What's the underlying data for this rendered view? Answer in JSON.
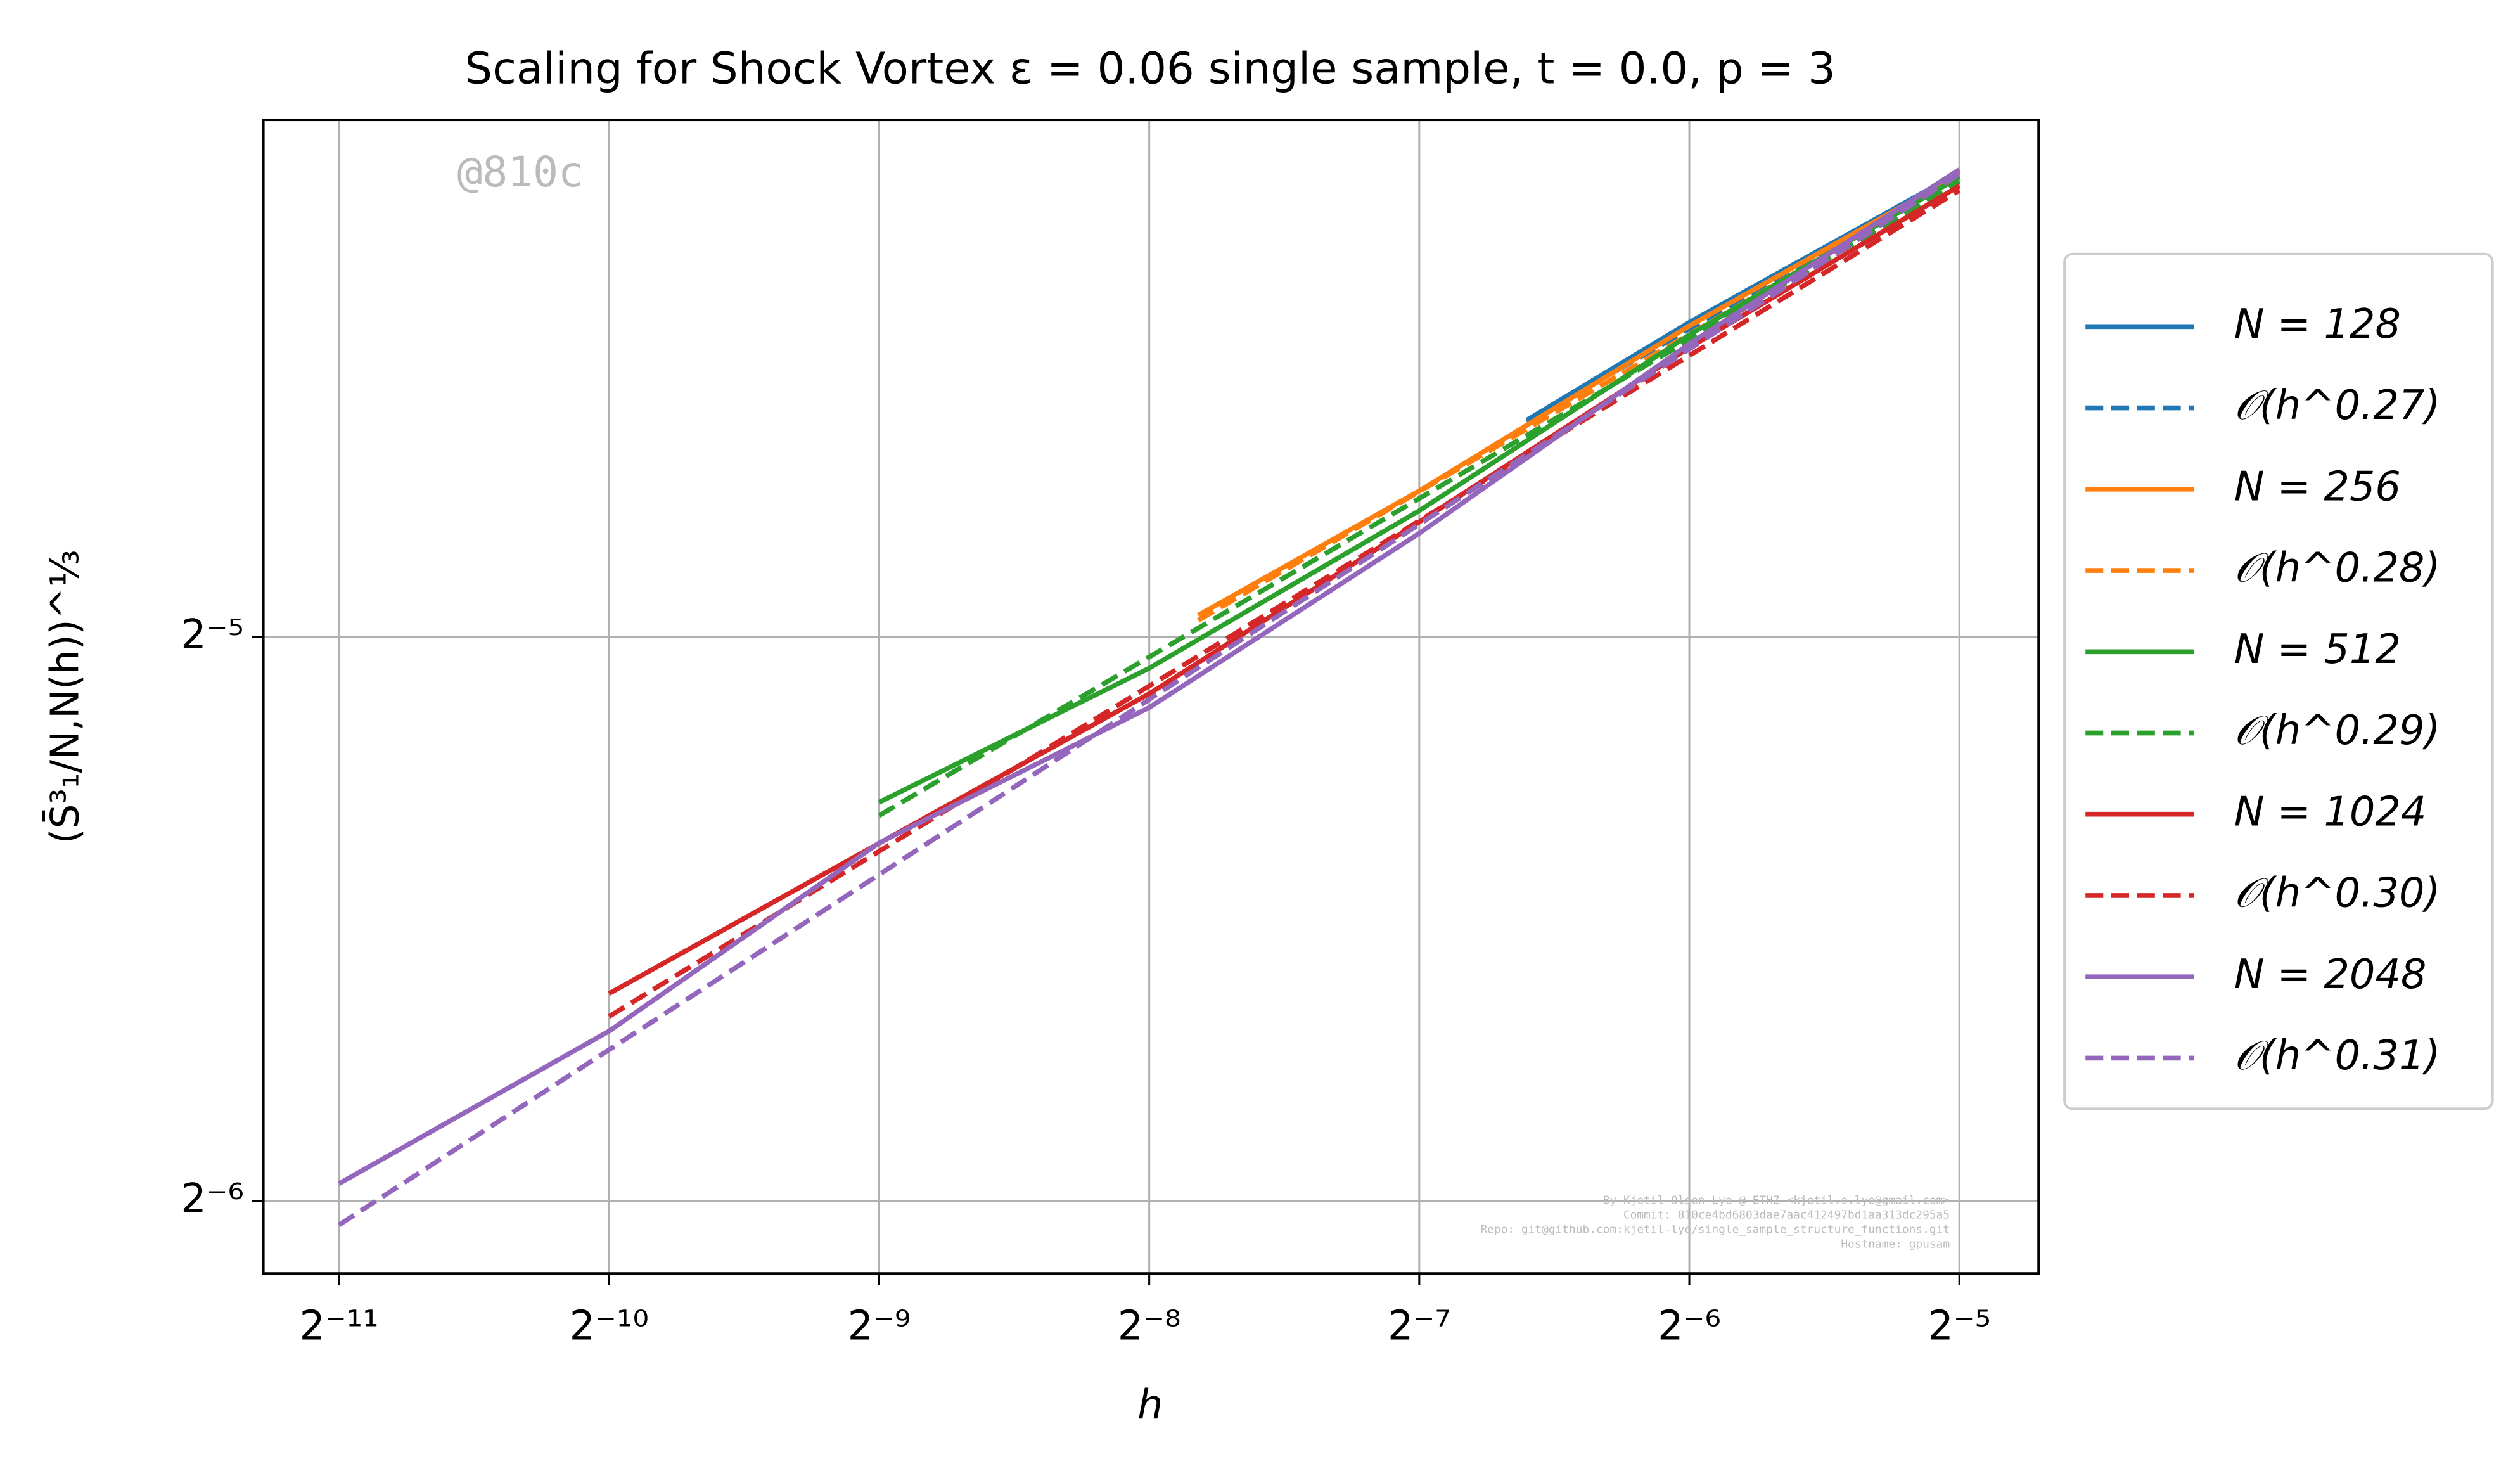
{
  "chart_data": {
    "type": "line",
    "title": "Scaling for Shock Vortex ε = 0.06 single sample, t = 0.0, p = 3",
    "xlabel": "h",
    "ylabel": "(S̄³₁/N,N(h))^⅓",
    "log_base": 2,
    "grid": true,
    "legend": "outside right",
    "xlim": [
      0.000402,
      0.0383
    ],
    "ylim": [
      0.0143,
      0.059
    ],
    "xticks": [
      {
        "value": 0.00048828125,
        "label": "2⁻¹¹"
      },
      {
        "value": 0.0009765625,
        "label": "2⁻¹⁰"
      },
      {
        "value": 0.001953125,
        "label": "2⁻⁹"
      },
      {
        "value": 0.00390625,
        "label": "2⁻⁸"
      },
      {
        "value": 0.0078125,
        "label": "2⁻⁷"
      },
      {
        "value": 0.015625,
        "label": "2⁻⁶"
      },
      {
        "value": 0.03125,
        "label": "2⁻⁵"
      }
    ],
    "yticks": [
      {
        "value": 0.015625,
        "label": "2⁻⁶"
      },
      {
        "value": 0.03125,
        "label": "2⁻⁵"
      }
    ],
    "annotations": {
      "watermark": "@810c",
      "footer": [
        "By Kjetil Olsen Lye @ ETHZ <kjetil.o.lye@gmail.com>",
        "Commit: 810ce4bd6803dae7aac412497bd1aa313dc295a5",
        "Repo: git@github.com:kjetil-lye/single_sample_structure_functions.git",
        "Hostname: gpusam"
      ]
    },
    "series": [
      {
        "name": "N = 128",
        "color": "#1f77b4",
        "style": "solid",
        "x": [
          0.0103,
          0.015625,
          0.03125
        ],
        "values": [
          0.0408,
          0.046,
          0.0553
        ]
      },
      {
        "name": "𝒪(h^0.27)",
        "color": "#1f77b4",
        "style": "dashed",
        "x": [
          0.0103,
          0.03125
        ],
        "values": [
          0.0407,
          0.0552
        ]
      },
      {
        "name": "N = 256",
        "color": "#ff7f0e",
        "style": "solid",
        "x": [
          0.00443,
          0.0078125,
          0.015625,
          0.03125
        ],
        "values": [
          0.0321,
          0.0374,
          0.0458,
          0.0552
        ]
      },
      {
        "name": "𝒪(h^0.28)",
        "color": "#ff7f0e",
        "style": "dashed",
        "x": [
          0.00443,
          0.03125
        ],
        "values": [
          0.0319,
          0.055
        ]
      },
      {
        "name": "N = 512",
        "color": "#2ca02c",
        "style": "solid",
        "x": [
          0.001953125,
          0.00390625,
          0.0078125,
          0.015625,
          0.03125
        ],
        "values": [
          0.02551,
          0.03008,
          0.0365,
          0.0453,
          0.055
        ]
      },
      {
        "name": "𝒪(h^0.29)",
        "color": "#2ca02c",
        "style": "dashed",
        "x": [
          0.001953125,
          0.03125
        ],
        "values": [
          0.0251,
          0.0547
        ]
      },
      {
        "name": "N = 1024",
        "color": "#d62728",
        "style": "solid",
        "x": [
          0.0009765625,
          0.001953125,
          0.00390625,
          0.0078125,
          0.015625,
          0.03125
        ],
        "values": [
          0.02017,
          0.02426,
          0.02915,
          0.036,
          0.0446,
          0.0544
        ]
      },
      {
        "name": "𝒪(h^0.30)",
        "color": "#d62728",
        "style": "dashed",
        "x": [
          0.0009765625,
          0.03125
        ],
        "values": [
          0.01961,
          0.0541
        ]
      },
      {
        "name": "N = 2048",
        "color": "#9467bd",
        "style": "solid",
        "x": [
          0.00048828125,
          0.0009765625,
          0.001953125,
          0.00390625,
          0.0078125,
          0.015625,
          0.03125
        ],
        "values": [
          0.01597,
          0.01926,
          0.02427,
          0.02866,
          0.0355,
          0.0448,
          0.0555
        ]
      },
      {
        "name": "𝒪(h^0.31)",
        "color": "#9467bd",
        "style": "dashed",
        "x": [
          0.00048828125,
          0.03125
        ],
        "values": [
          0.01518,
          0.0552
        ]
      }
    ]
  }
}
